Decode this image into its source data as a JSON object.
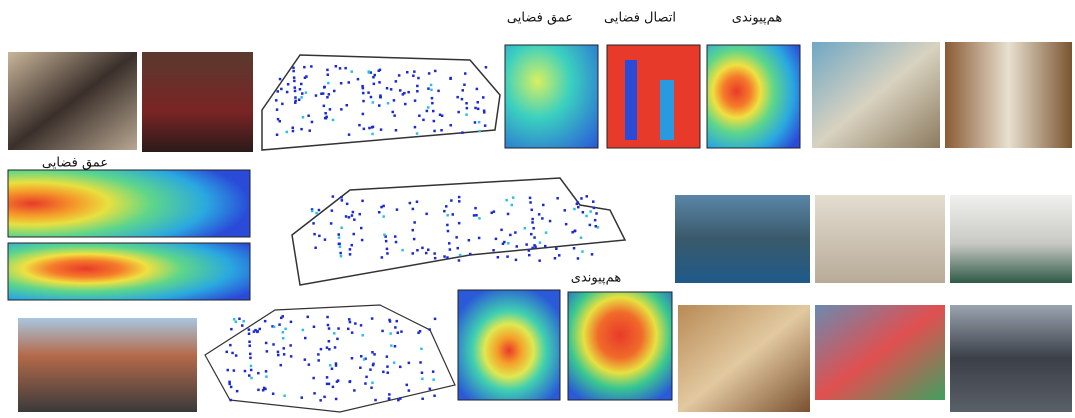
{
  "labels": {
    "depth_top": "عمق فضایی",
    "connectivity_top": "اتصال فضایی",
    "integration_top": "هم‌پیوندی",
    "depth_left": "عمق فضایی",
    "integration_bottom": "هم‌پیوندی"
  }
}
